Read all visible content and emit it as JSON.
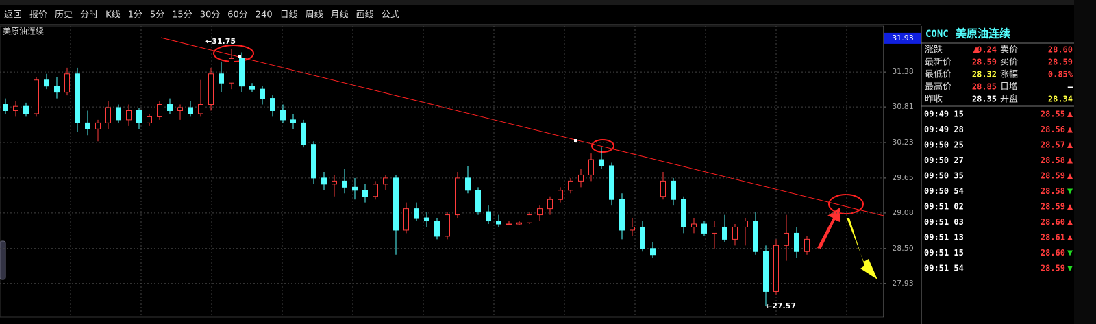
{
  "toolbar": {
    "items": [
      "返回",
      "报价",
      "历史",
      "分时",
      "K线",
      "1分",
      "5分",
      "15分",
      "30分",
      "60分",
      "240",
      "日线",
      "周线",
      "月线",
      "画线",
      "公式"
    ]
  },
  "chart_data": {
    "type": "candlestick",
    "title": "美原油连续",
    "open": [
      30.85,
      30.75,
      30.82,
      30.7,
      31.25,
      31.15,
      31.05,
      31.35,
      30.55,
      30.45,
      30.55,
      30.8,
      30.6,
      30.75,
      30.55,
      30.65,
      30.85,
      30.75,
      30.8,
      30.7,
      30.85,
      31.35,
      31.2,
      31.6,
      31.15,
      31.1,
      30.95,
      30.75,
      30.6,
      30.55,
      30.2,
      29.65,
      29.55,
      29.6,
      29.5,
      29.45,
      29.35,
      29.55,
      29.65,
      28.8,
      29.15,
      29.0,
      28.95,
      28.7,
      29.05,
      29.65,
      29.45,
      29.1,
      28.95,
      28.9,
      28.9,
      28.92,
      29.05,
      29.15,
      29.3,
      29.45,
      29.6,
      29.7,
      29.95,
      29.85,
      29.3,
      28.8,
      28.85,
      28.5,
      29.35,
      29.6,
      29.3,
      28.85,
      28.9,
      28.75,
      28.85,
      28.65,
      28.85,
      28.95,
      28.45,
      27.8,
      28.55,
      28.75,
      28.45
    ],
    "high": [
      30.95,
      30.9,
      30.88,
      31.3,
      31.35,
      31.3,
      31.45,
      31.45,
      30.75,
      30.6,
      30.9,
      30.85,
      30.85,
      30.8,
      30.7,
      30.9,
      30.95,
      30.85,
      30.9,
      31.25,
      31.45,
      31.55,
      31.75,
      31.7,
      31.2,
      31.15,
      31.0,
      30.85,
      30.7,
      30.6,
      30.25,
      29.75,
      29.7,
      29.8,
      29.65,
      29.55,
      29.6,
      29.7,
      29.7,
      29.25,
      29.25,
      29.1,
      29.0,
      29.1,
      29.75,
      29.85,
      29.5,
      29.2,
      29.05,
      28.95,
      28.95,
      29.1,
      29.2,
      29.35,
      29.5,
      29.65,
      29.8,
      30.05,
      30.15,
      29.9,
      29.4,
      29.0,
      28.95,
      28.6,
      29.75,
      29.65,
      29.35,
      29.0,
      28.95,
      28.95,
      29.05,
      28.9,
      29.0,
      29.1,
      28.55,
      28.65,
      29.05,
      28.85,
      28.7
    ],
    "low": [
      30.7,
      30.65,
      30.65,
      30.65,
      31.1,
      30.95,
      31.0,
      30.4,
      30.35,
      30.25,
      30.45,
      30.55,
      30.5,
      30.45,
      30.5,
      30.6,
      30.7,
      30.6,
      30.65,
      30.65,
      30.75,
      31.05,
      31.1,
      31.05,
      31.05,
      30.85,
      30.65,
      30.55,
      30.45,
      30.15,
      29.55,
      29.45,
      29.35,
      29.4,
      29.3,
      29.25,
      29.3,
      29.45,
      28.4,
      28.75,
      28.95,
      28.85,
      28.65,
      28.65,
      29.0,
      29.4,
      29.05,
      28.9,
      28.85,
      28.88,
      28.88,
      28.9,
      28.95,
      29.05,
      29.25,
      29.4,
      29.5,
      29.6,
      29.8,
      29.2,
      28.65,
      28.7,
      28.45,
      28.35,
      29.3,
      29.2,
      28.75,
      28.75,
      28.7,
      28.5,
      28.6,
      28.55,
      28.55,
      28.4,
      27.57,
      27.75,
      28.3,
      28.35,
      28.4
    ],
    "close": [
      30.75,
      30.82,
      30.7,
      31.25,
      31.15,
      31.05,
      31.35,
      30.55,
      30.45,
      30.55,
      30.8,
      30.6,
      30.75,
      30.55,
      30.65,
      30.85,
      30.75,
      30.8,
      30.7,
      30.85,
      31.35,
      31.2,
      31.6,
      31.15,
      31.1,
      30.95,
      30.75,
      30.6,
      30.55,
      30.2,
      29.65,
      29.55,
      29.6,
      29.5,
      29.45,
      29.35,
      29.55,
      29.65,
      28.8,
      29.15,
      29.0,
      28.95,
      28.7,
      29.05,
      29.65,
      29.45,
      29.1,
      28.95,
      28.9,
      28.9,
      28.92,
      29.05,
      29.15,
      29.3,
      29.45,
      29.6,
      29.7,
      29.95,
      29.85,
      29.3,
      28.8,
      28.85,
      28.5,
      28.4,
      29.6,
      29.3,
      28.85,
      28.9,
      28.75,
      28.85,
      28.65,
      28.85,
      28.95,
      28.45,
      27.8,
      28.55,
      28.75,
      28.45,
      28.65
    ],
    "up_color": "#ff3c3c",
    "down_color": "#54ffff",
    "ylim": [
      27.38,
      32.13
    ],
    "yticks": [
      27.93,
      {
        "value": 28.5,
        "label": "28.50"
      },
      29.08,
      29.65,
      30.23,
      30.81,
      31.38
    ],
    "grid": true,
    "last_price": 31.93,
    "max_label": {
      "value": 31.75,
      "label": "←31.75"
    },
    "min_label": {
      "value": 27.57,
      "label": "←27.57"
    }
  },
  "quote": {
    "code": "CONC",
    "name": "美原油连续",
    "rows": [
      {
        "label": "涨跌",
        "value": "0.24",
        "dir": "up",
        "label2": "卖价",
        "value2": "28.60"
      },
      {
        "label": "最新价",
        "value": "28.59",
        "label2": "买价",
        "value2": "28.59"
      },
      {
        "label": "最低价",
        "value": "28.32",
        "label2": "涨幅",
        "value2": "0.85%"
      },
      {
        "label": "最高价",
        "value": "28.85",
        "label2": "日增",
        "value2": "—"
      },
      {
        "label": "昨收",
        "value": "28.35",
        "label2": "开盘",
        "value2": "28.34"
      }
    ]
  },
  "ticks": [
    {
      "time": "09:49 15",
      "price": "28.55",
      "dir": "up"
    },
    {
      "time": "09:49 28",
      "price": "28.56",
      "dir": "up"
    },
    {
      "time": "09:50 25",
      "price": "28.57",
      "dir": "up"
    },
    {
      "time": "09:50 27",
      "price": "28.58",
      "dir": "up"
    },
    {
      "time": "09:50 35",
      "price": "28.59",
      "dir": "up"
    },
    {
      "time": "09:50 54",
      "price": "28.58",
      "dir": "down"
    },
    {
      "time": "09:51 02",
      "price": "28.59",
      "dir": "up"
    },
    {
      "time": "09:51 03",
      "price": "28.60",
      "dir": "up"
    },
    {
      "time": "09:51 13",
      "price": "28.61",
      "dir": "up"
    },
    {
      "time": "09:51 15",
      "price": "28.60",
      "dir": "down"
    },
    {
      "time": "09:51 54",
      "price": "28.59",
      "dir": "down"
    }
  ]
}
